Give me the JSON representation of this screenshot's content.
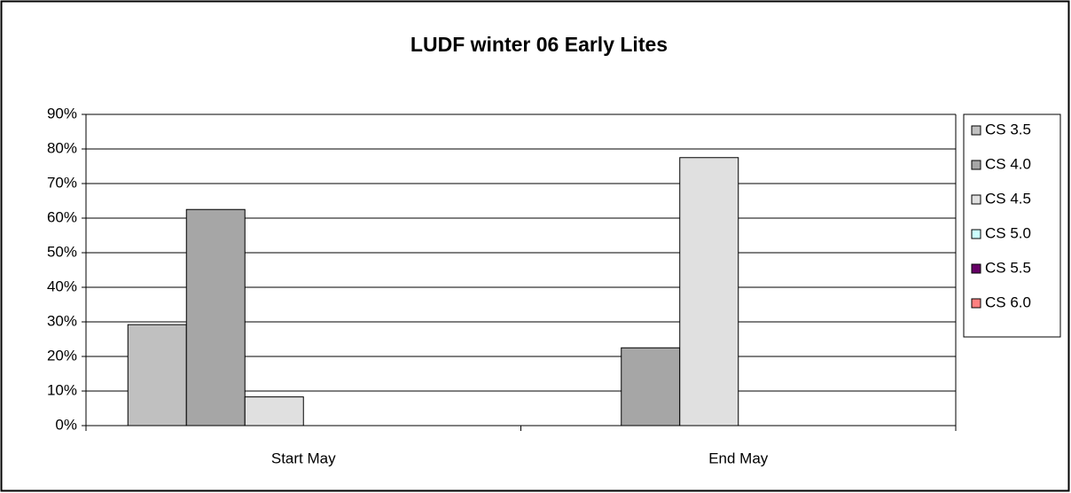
{
  "chart_data": {
    "type": "bar",
    "title": "LUDF winter 06 Early Lites",
    "categories": [
      "Start May",
      "End May"
    ],
    "series": [
      {
        "name": "CS 3.5",
        "color": "#c0c0c0",
        "values": [
          29.2,
          0
        ]
      },
      {
        "name": "CS 4.0",
        "color": "#a6a6a6",
        "values": [
          62.5,
          22.5
        ]
      },
      {
        "name": "CS 4.5",
        "color": "#e0e0e0",
        "values": [
          8.3,
          77.5
        ]
      },
      {
        "name": "CS 5.0",
        "color": "#ccffff",
        "values": [
          0,
          0
        ]
      },
      {
        "name": "CS 5.5",
        "color": "#660066",
        "values": [
          0,
          0
        ]
      },
      {
        "name": "CS 6.0",
        "color": "#ff8080",
        "values": [
          0,
          0
        ]
      }
    ],
    "ylim": [
      0,
      90
    ],
    "yticks": [
      {
        "value": 0,
        "label": "0%"
      },
      {
        "value": 10,
        "label": "10%"
      },
      {
        "value": 20,
        "label": "20%"
      },
      {
        "value": 30,
        "label": "30%"
      },
      {
        "value": 40,
        "label": "40%"
      },
      {
        "value": 50,
        "label": "50%"
      },
      {
        "value": 60,
        "label": "60%"
      },
      {
        "value": 70,
        "label": "70%"
      },
      {
        "value": 80,
        "label": "80%"
      },
      {
        "value": 90,
        "label": "90%"
      }
    ],
    "grid": true,
    "legend": "right"
  }
}
